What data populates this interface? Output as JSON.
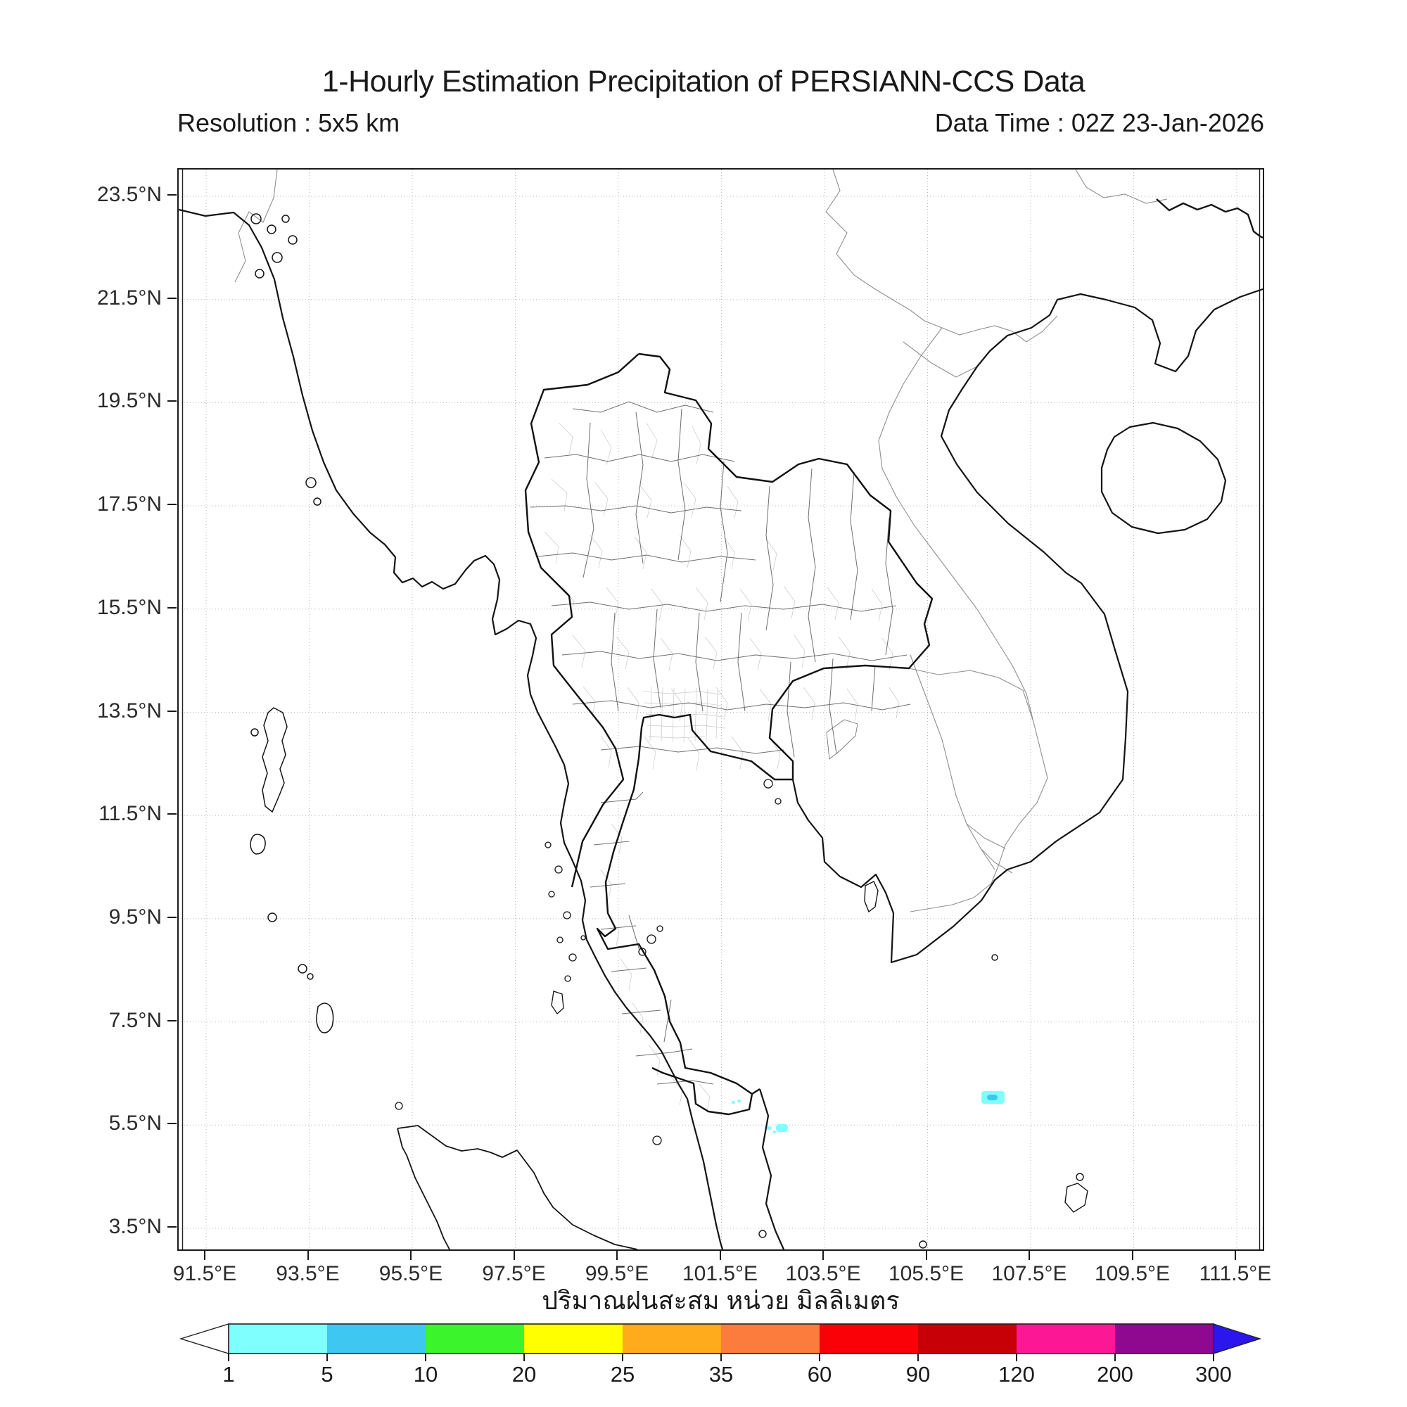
{
  "header": {
    "title": "1-Hourly Estimation Precipitation of PERSIANN-CCS Data",
    "resolution": "Resolution : 5x5 km",
    "data_time": "Data Time : 02Z 23-Jan-2026"
  },
  "caption_unit_thai": "ปริมาณฝนสะสม หน่วย มิลลิเมตร",
  "axes": {
    "lat_ticks": [
      {
        "label": "23.5°N",
        "deg": 23.5
      },
      {
        "label": "21.5°N",
        "deg": 21.5
      },
      {
        "label": "19.5°N",
        "deg": 19.5
      },
      {
        "label": "17.5°N",
        "deg": 17.5
      },
      {
        "label": "15.5°N",
        "deg": 15.5
      },
      {
        "label": "13.5°N",
        "deg": 13.5
      },
      {
        "label": "11.5°N",
        "deg": 11.5
      },
      {
        "label": "9.5°N",
        "deg": 9.5
      },
      {
        "label": "7.5°N",
        "deg": 7.5
      },
      {
        "label": "5.5°N",
        "deg": 5.5
      },
      {
        "label": "3.5°N",
        "deg": 3.5
      }
    ],
    "lon_ticks": [
      {
        "label": "91.5°E",
        "deg": 91.5
      },
      {
        "label": "93.5°E",
        "deg": 93.5
      },
      {
        "label": "95.5°E",
        "deg": 95.5
      },
      {
        "label": "97.5°E",
        "deg": 97.5
      },
      {
        "label": "99.5°E",
        "deg": 99.5
      },
      {
        "label": "101.5°E",
        "deg": 101.5
      },
      {
        "label": "103.5°E",
        "deg": 103.5
      },
      {
        "label": "105.5°E",
        "deg": 105.5
      },
      {
        "label": "107.5°E",
        "deg": 107.5
      },
      {
        "label": "109.5°E",
        "deg": 109.5
      },
      {
        "label": "111.5°E",
        "deg": 111.5
      }
    ]
  },
  "colorbar": {
    "tick_labels": [
      "1",
      "5",
      "10",
      "20",
      "25",
      "35",
      "60",
      "90",
      "120",
      "200",
      "300"
    ],
    "under_color": "#FFFFFF",
    "over_color": "#2B17EE",
    "segments": [
      {
        "min": 1,
        "max": 5,
        "color": "#80FFFF"
      },
      {
        "min": 5,
        "max": 10,
        "color": "#3EC7F0"
      },
      {
        "min": 10,
        "max": 20,
        "color": "#3BF42C"
      },
      {
        "min": 20,
        "max": 25,
        "color": "#FFFF00"
      },
      {
        "min": 25,
        "max": 35,
        "color": "#FFAB1B"
      },
      {
        "min": 35,
        "max": 60,
        "color": "#FB7C3C"
      },
      {
        "min": 60,
        "max": 90,
        "color": "#FA0007"
      },
      {
        "min": 90,
        "max": 120,
        "color": "#C70008"
      },
      {
        "min": 120,
        "max": 200,
        "color": "#FC1895"
      },
      {
        "min": 200,
        "max": 300,
        "color": "#8E0890"
      }
    ]
  },
  "chart_data": {
    "type": "map",
    "region": {
      "lon_min": 91.5,
      "lon_max": 111.5,
      "lat_min": 3.5,
      "lat_max": 23.5
    },
    "grid": "on",
    "precipitation_cells": [
      {
        "lon": 101.7,
        "lat": 5.97,
        "value_mm": "1-5",
        "color_key": "#80FFFF",
        "px": [
          786,
          1324,
          5,
          4
        ]
      },
      {
        "lon": 101.81,
        "lat": 6.0,
        "value_mm": "1-5",
        "color_key": "#80FFFF",
        "px": [
          794,
          1322,
          5,
          4
        ]
      },
      {
        "lon": 102.38,
        "lat": 5.48,
        "value_mm": "1-5",
        "color_key": "#80FFFF",
        "px": [
          836,
          1360,
          7,
          5
        ]
      },
      {
        "lon": 102.5,
        "lat": 5.4,
        "value_mm": "1-5",
        "color_key": "#80FFFF",
        "px": [
          845,
          1366,
          4,
          4
        ]
      },
      {
        "lon": 102.62,
        "lat": 5.5,
        "value_mm": "1-5",
        "color_key": "#80FFFF",
        "px": [
          849,
          1357,
          17,
          11
        ]
      },
      {
        "lon": 106.75,
        "lat": 6.05,
        "value_mm": "1-5",
        "color_key": "#80FFFF",
        "px": [
          1141,
          1310,
          33,
          18
        ]
      },
      {
        "lon": 106.7,
        "lat": 6.07,
        "value_mm": "5-10",
        "color_key": "#3EC7F0",
        "px": [
          1149,
          1315,
          15,
          8
        ]
      }
    ]
  }
}
